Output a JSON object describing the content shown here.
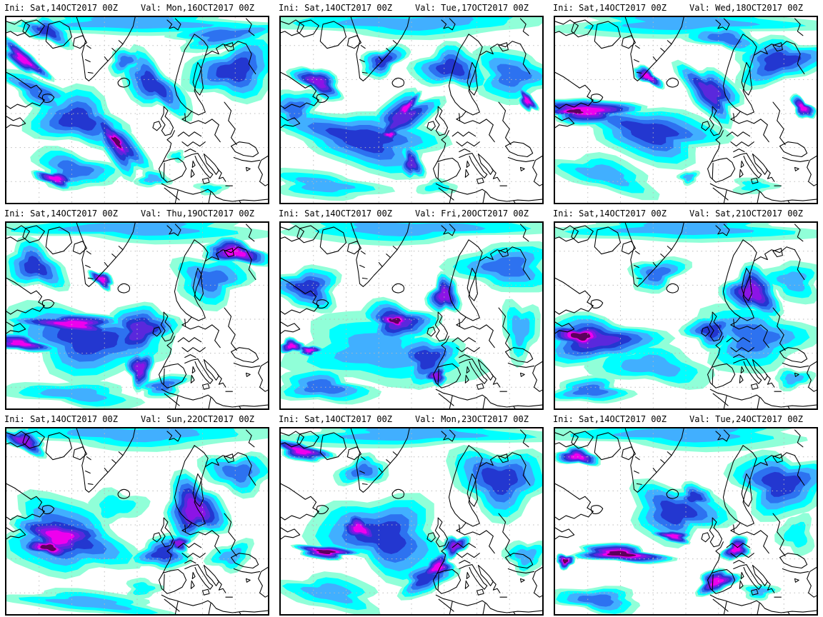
{
  "product": {
    "field_name": "total-precipitation-forecast-maps",
    "init_time": "Sat,14OCT2017 00Z",
    "grid_rows": 3,
    "grid_cols": 3
  },
  "palette": {
    "background": "#ffffff",
    "coastline": "#000000",
    "map_border": "#000000",
    "graticule": "#b8b8b8",
    "header_text": "#000000",
    "precip_levels": [
      "#90ffd8",
      "#00ffff",
      "#41afff",
      "#2d72f0",
      "#2337d0",
      "#5a28dc",
      "#8c14e6",
      "#ee00ee",
      "#5c005c"
    ]
  },
  "feature_keys": [
    "x",
    "y",
    "rx",
    "ry",
    "rot",
    "level"
  ],
  "panels": [
    {
      "ini": "Ini: Sat,14OCT2017 00Z",
      "val": "Val: Mon,16OCT2017 00Z",
      "precip_features": [
        [
          190,
          8,
          205,
          20,
          0,
          3
        ],
        [
          320,
          25,
          90,
          18,
          -5,
          4
        ],
        [
          335,
          75,
          75,
          40,
          -8,
          5
        ],
        [
          60,
          20,
          40,
          18,
          20,
          5
        ],
        [
          25,
          60,
          42,
          15,
          35,
          8
        ],
        [
          45,
          105,
          65,
          20,
          25,
          4
        ],
        [
          105,
          145,
          80,
          38,
          12,
          5
        ],
        [
          215,
          95,
          65,
          30,
          42,
          5
        ],
        [
          163,
          178,
          62,
          26,
          48,
          6
        ],
        [
          162,
          176,
          34,
          13,
          48,
          9
        ],
        [
          100,
          215,
          70,
          25,
          10,
          4
        ],
        [
          72,
          228,
          34,
          11,
          12,
          8
        ],
        [
          215,
          228,
          24,
          13,
          0,
          3
        ],
        [
          300,
          242,
          22,
          9,
          0,
          2
        ],
        [
          250,
          196,
          13,
          8,
          0,
          2
        ],
        [
          175,
          62,
          30,
          16,
          -20,
          4
        ]
      ]
    },
    {
      "ini": "Ini: Sat,14OCT2017 00Z",
      "val": "Val: Tue,17OCT2017 00Z",
      "precip_features": [
        [
          190,
          8,
          205,
          20,
          0,
          3
        ],
        [
          250,
          72,
          55,
          32,
          0,
          5
        ],
        [
          340,
          82,
          60,
          38,
          0,
          4
        ],
        [
          362,
          118,
          20,
          10,
          55,
          8
        ],
        [
          55,
          92,
          42,
          18,
          30,
          7
        ],
        [
          150,
          62,
          36,
          20,
          -25,
          5
        ],
        [
          120,
          172,
          125,
          42,
          8,
          5
        ],
        [
          178,
          142,
          62,
          28,
          -32,
          6
        ],
        [
          184,
          128,
          28,
          11,
          -40,
          8
        ],
        [
          160,
          166,
          17,
          8,
          0,
          8
        ],
        [
          192,
          206,
          17,
          27,
          -8,
          6
        ],
        [
          62,
          237,
          85,
          20,
          5,
          3
        ],
        [
          20,
          130,
          40,
          30,
          10,
          4
        ],
        [
          230,
          240,
          30,
          10,
          0,
          2
        ]
      ]
    },
    {
      "ini": "Ini: Sat,14OCT2017 00Z",
      "val": "Val: Wed,18OCT2017 00Z",
      "precip_features": [
        [
          190,
          8,
          205,
          20,
          0,
          3
        ],
        [
          48,
          132,
          72,
          20,
          4,
          8
        ],
        [
          30,
          133,
          40,
          11,
          4,
          9
        ],
        [
          136,
          84,
          26,
          10,
          28,
          8
        ],
        [
          140,
          162,
          115,
          38,
          8,
          5
        ],
        [
          228,
          106,
          56,
          30,
          44,
          6
        ],
        [
          330,
          62,
          72,
          34,
          -5,
          5
        ],
        [
          364,
          128,
          22,
          12,
          38,
          8
        ],
        [
          72,
          222,
          82,
          24,
          10,
          3
        ],
        [
          292,
          238,
          33,
          11,
          0,
          2
        ],
        [
          196,
          226,
          15,
          10,
          0,
          3
        ],
        [
          250,
          30,
          60,
          18,
          10,
          4
        ]
      ]
    },
    {
      "ini": "Ini: Sat,14OCT2017 00Z",
      "val": "Val: Thu,19OCT2017 00Z",
      "precip_features": [
        [
          190,
          8,
          205,
          20,
          0,
          3
        ],
        [
          336,
          42,
          55,
          17,
          8,
          8
        ],
        [
          300,
          80,
          60,
          35,
          0,
          4
        ],
        [
          98,
          143,
          78,
          17,
          4,
          8
        ],
        [
          20,
          170,
          46,
          13,
          8,
          8
        ],
        [
          120,
          165,
          130,
          48,
          4,
          5
        ],
        [
          140,
          80,
          22,
          10,
          28,
          8
        ],
        [
          196,
          152,
          52,
          38,
          -18,
          6
        ],
        [
          196,
          206,
          20,
          30,
          -5,
          7
        ],
        [
          102,
          242,
          100,
          18,
          4,
          3
        ],
        [
          42,
          62,
          52,
          30,
          18,
          5
        ],
        [
          230,
          230,
          40,
          15,
          -10,
          4
        ]
      ]
    },
    {
      "ini": "Ini: Sat,14OCT2017 00Z",
      "val": "Val: Fri,20OCT2017 00Z",
      "precip_features": [
        [
          190,
          8,
          205,
          20,
          0,
          3
        ],
        [
          40,
          92,
          48,
          34,
          0,
          5
        ],
        [
          145,
          182,
          132,
          52,
          4,
          3
        ],
        [
          172,
          140,
          60,
          28,
          8,
          6
        ],
        [
          168,
          138,
          32,
          13,
          8,
          9
        ],
        [
          240,
          102,
          23,
          30,
          8,
          7
        ],
        [
          215,
          192,
          46,
          40,
          -8,
          5
        ],
        [
          228,
          216,
          20,
          13,
          0,
          7
        ],
        [
          16,
          174,
          21,
          10,
          0,
          8
        ],
        [
          42,
          180,
          18,
          8,
          0,
          8
        ],
        [
          332,
          62,
          72,
          38,
          0,
          4
        ],
        [
          62,
          232,
          72,
          24,
          4,
          4
        ],
        [
          352,
          150,
          30,
          40,
          0,
          3
        ]
      ]
    },
    {
      "ini": "Ini: Sat,14OCT2017 00Z",
      "val": "Val: Sat,21OCT2017 00Z",
      "precip_features": [
        [
          190,
          8,
          205,
          20,
          0,
          3
        ],
        [
          60,
          165,
          95,
          34,
          4,
          6
        ],
        [
          38,
          160,
          50,
          19,
          4,
          9
        ],
        [
          290,
          98,
          42,
          36,
          8,
          7
        ],
        [
          292,
          162,
          82,
          48,
          0,
          4
        ],
        [
          230,
          152,
          42,
          24,
          0,
          5
        ],
        [
          142,
          202,
          92,
          28,
          8,
          3
        ],
        [
          150,
          72,
          42,
          24,
          -18,
          4
        ],
        [
          350,
          82,
          42,
          30,
          0,
          3
        ],
        [
          52,
          237,
          62,
          18,
          0,
          4
        ],
        [
          350,
          220,
          30,
          14,
          0,
          3
        ]
      ]
    },
    {
      "ini": "Ini: Sat,14OCT2017 00Z",
      "val": "Val: Sun,22OCT2017 00Z",
      "precip_features": [
        [
          190,
          8,
          205,
          20,
          0,
          3
        ],
        [
          26,
          18,
          38,
          15,
          18,
          7
        ],
        [
          88,
          155,
          98,
          54,
          14,
          5
        ],
        [
          78,
          153,
          64,
          34,
          14,
          8
        ],
        [
          62,
          168,
          40,
          15,
          10,
          9
        ],
        [
          276,
          115,
          48,
          45,
          8,
          7
        ],
        [
          253,
          162,
          19,
          12,
          0,
          7
        ],
        [
          230,
          176,
          42,
          25,
          0,
          5
        ],
        [
          160,
          110,
          42,
          24,
          0,
          2
        ],
        [
          340,
          62,
          52,
          30,
          0,
          4
        ],
        [
          122,
          246,
          122,
          16,
          4,
          3
        ],
        [
          200,
          226,
          26,
          14,
          0,
          2
        ],
        [
          330,
          180,
          35,
          20,
          -10,
          3
        ]
      ]
    },
    {
      "ini": "Ini: Sat,14OCT2017 00Z",
      "val": "Val: Mon,23OCT2017 00Z",
      "precip_features": [
        [
          190,
          8,
          205,
          20,
          0,
          3
        ],
        [
          30,
          32,
          42,
          14,
          14,
          8
        ],
        [
          150,
          152,
          102,
          58,
          8,
          5
        ],
        [
          116,
          142,
          38,
          18,
          18,
          8
        ],
        [
          66,
          174,
          48,
          10,
          4,
          9
        ],
        [
          230,
          196,
          26,
          18,
          -22,
          8
        ],
        [
          256,
          166,
          21,
          15,
          -28,
          7
        ],
        [
          322,
          72,
          76,
          48,
          0,
          5
        ],
        [
          72,
          232,
          82,
          24,
          8,
          3
        ],
        [
          212,
          212,
          42,
          24,
          -14,
          5
        ],
        [
          360,
          180,
          30,
          25,
          0,
          3
        ],
        [
          120,
          60,
          40,
          20,
          -15,
          4
        ]
      ]
    },
    {
      "ini": "Ini: Sat,14OCT2017 00Z",
      "val": "Val: Tue,24OCT2017 00Z",
      "precip_features": [
        [
          190,
          8,
          205,
          20,
          0,
          3
        ],
        [
          33,
          40,
          36,
          12,
          8,
          8
        ],
        [
          178,
          118,
          72,
          44,
          8,
          5
        ],
        [
          174,
          152,
          27,
          10,
          8,
          8
        ],
        [
          96,
          177,
          72,
          13,
          4,
          9
        ],
        [
          15,
          187,
          15,
          10,
          0,
          9
        ],
        [
          266,
          170,
          23,
          15,
          -28,
          8
        ],
        [
          237,
          216,
          30,
          18,
          -18,
          8
        ],
        [
          332,
          78,
          72,
          48,
          0,
          5
        ],
        [
          62,
          242,
          72,
          18,
          4,
          4
        ],
        [
          205,
          97,
          32,
          18,
          0,
          5
        ],
        [
          300,
          230,
          25,
          12,
          0,
          3
        ],
        [
          355,
          150,
          25,
          30,
          0,
          2
        ]
      ]
    }
  ]
}
